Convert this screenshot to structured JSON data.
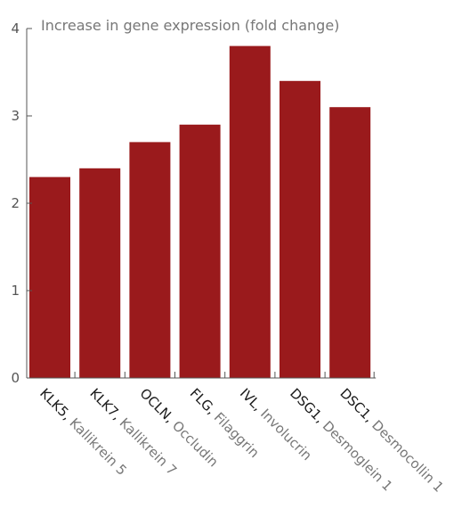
{
  "chart_data": {
    "type": "bar",
    "ylabel": "Increase in gene expression (fold change)",
    "xlabel": "",
    "ylim": [
      0,
      4
    ],
    "yticks": [
      0,
      1,
      2,
      3,
      4
    ],
    "grid": false,
    "bar_color": "#9a1a1c",
    "categories": [
      {
        "abbr": "KLK5,",
        "name": " Kallikrein 5"
      },
      {
        "abbr": "KLK7,",
        "name": " Kallikrein 7"
      },
      {
        "abbr": "OCLN,",
        "name": " Occludin"
      },
      {
        "abbr": "FLG,",
        "name": " Filaggrin"
      },
      {
        "abbr": "IVL,",
        "name": " Involucrin"
      },
      {
        "abbr": "DSG1,",
        "name": " Desmoglein 1"
      },
      {
        "abbr": "DSC1,",
        "name": " Desmocollin 1"
      }
    ],
    "values": [
      2.3,
      2.4,
      2.7,
      2.9,
      3.8,
      3.4,
      3.1
    ]
  }
}
